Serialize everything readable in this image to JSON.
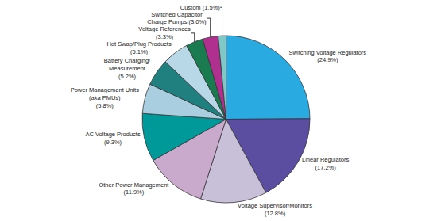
{
  "chart_data": {
    "type": "pie",
    "categories": [
      "Switching Voltage Regulators\n(24.9%)",
      "Linear Regulators\n(17.2%)",
      "Voltage Supervisor/Monitors\n(12.8%)",
      "Other Power Management\n(11.9%)",
      "AC Voltage Products\n(9.3%)",
      "Power Management Units\n(aka PMUs)\n(5.8%)",
      "Battery Charging/\nMeasurement\n(5.2%)",
      "Hot Swap/Plug Products\n(5.1%)",
      "Voltage References\n(3.3%)",
      "Switched Capacitor\nCharge Pumps (3.0%)",
      "Custom (1.5%)"
    ],
    "values": [
      24.9,
      17.2,
      12.8,
      11.9,
      9.3,
      5.8,
      5.2,
      5.1,
      3.3,
      3.0,
      1.5
    ],
    "colors": [
      "#29ABE2",
      "#5B4EA0",
      "#C8BFD8",
      "#C9AACC",
      "#009999",
      "#A8CEE0",
      "#208080",
      "#B8D8E8",
      "#1A7A50",
      "#B03090",
      "#80C8C8"
    ]
  }
}
